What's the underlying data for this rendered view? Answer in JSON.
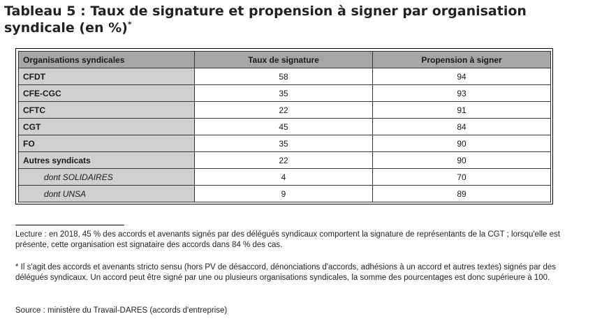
{
  "title": {
    "text": "Tableau 5 : Taux de signature et propension à signer par organisation syndicale (en %)",
    "footnote_mark": "*"
  },
  "table": {
    "headers": [
      "Organisations syndicales",
      "Taux de signature",
      "Propension à signer"
    ],
    "rows": [
      {
        "org": "CFDT",
        "taux": "58",
        "propension": "94"
      },
      {
        "org": "CFE-CGC",
        "taux": "35",
        "propension": "93"
      },
      {
        "org": "CFTC",
        "taux": "22",
        "propension": "91"
      },
      {
        "org": "CGT",
        "taux": "45",
        "propension": "84"
      },
      {
        "org": "FO",
        "taux": "35",
        "propension": "90"
      },
      {
        "org": "Autres syndicats",
        "taux": "22",
        "propension": "90"
      },
      {
        "org": "dont SOLIDAIRES",
        "taux": "4",
        "propension": "70"
      },
      {
        "org": "dont UNSA",
        "taux": "9",
        "propension": "89"
      }
    ]
  },
  "notes": {
    "lecture": "Lecture : en 2018, 45 % des accords et avenants signés par des délégués syndicaux comportent la signature de représentants de la CGT ; lorsqu'elle est présente, cette organisation est signataire des accords dans 84 % des cas.",
    "asterisk": "* Il s'agit des accords et avenants stricto sensu (hors PV de désaccord, dénonciations d'accords, adhésions à un accord et autres textes) signés par des délégués syndicaux. Un accord peut être signé par une ou plusieurs organisations syndicales, la somme des pourcentages est donc supérieure à 100.",
    "source": "Source : ministère du Travail-DARES (accords d'entreprise)"
  }
}
